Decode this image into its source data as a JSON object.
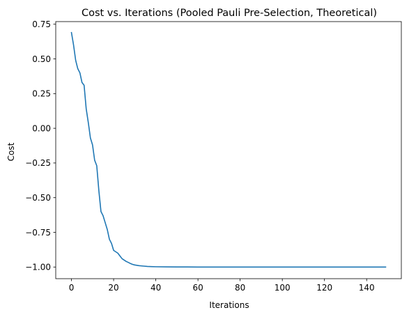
{
  "chart_data": {
    "type": "line",
    "title": "Cost vs. Iterations (Pooled Pauli Pre-Selection, Theoretical)",
    "xlabel": "Iterations",
    "ylabel": "Cost",
    "xlim": [
      -7.45,
      156.45
    ],
    "ylim": [
      -1.084,
      0.769
    ],
    "xticks": [
      0,
      20,
      40,
      60,
      80,
      100,
      120,
      140
    ],
    "xtick_labels": [
      "0",
      "20",
      "40",
      "60",
      "80",
      "100",
      "120",
      "140"
    ],
    "yticks": [
      0.75,
      0.5,
      0.25,
      0.0,
      -0.25,
      -0.5,
      -0.75,
      -1.0
    ],
    "ytick_labels": [
      "0.75",
      "0.50",
      "0.25",
      "0.00",
      "−0.25",
      "−0.50",
      "−0.75",
      "−1.00"
    ],
    "grid": false,
    "legend": "none",
    "series": [
      {
        "color": "#1f77b4",
        "x": [
          0,
          1,
          2,
          3,
          4,
          5,
          6,
          7,
          8,
          9,
          10,
          11,
          12,
          13,
          14,
          15,
          16,
          17,
          18,
          19,
          20,
          21,
          22,
          23,
          24,
          25,
          26,
          27,
          28,
          29,
          30,
          32,
          34,
          36,
          38,
          40,
          45,
          50,
          55,
          60,
          70,
          80,
          90,
          100,
          110,
          120,
          130,
          140,
          149
        ],
        "y": [
          0.69,
          0.6,
          0.49,
          0.43,
          0.4,
          0.33,
          0.31,
          0.14,
          0.04,
          -0.07,
          -0.12,
          -0.23,
          -0.27,
          -0.45,
          -0.6,
          -0.63,
          -0.68,
          -0.73,
          -0.8,
          -0.83,
          -0.88,
          -0.89,
          -0.9,
          -0.92,
          -0.94,
          -0.95,
          -0.96,
          -0.967,
          -0.975,
          -0.981,
          -0.985,
          -0.99,
          -0.993,
          -0.996,
          -0.997,
          -0.998,
          -0.999,
          -0.9995,
          -0.9998,
          -1.0,
          -1.0,
          -1.0,
          -1.0,
          -1.0,
          -1.0,
          -1.0,
          -1.0,
          -1.0,
          -1.0
        ]
      }
    ]
  }
}
